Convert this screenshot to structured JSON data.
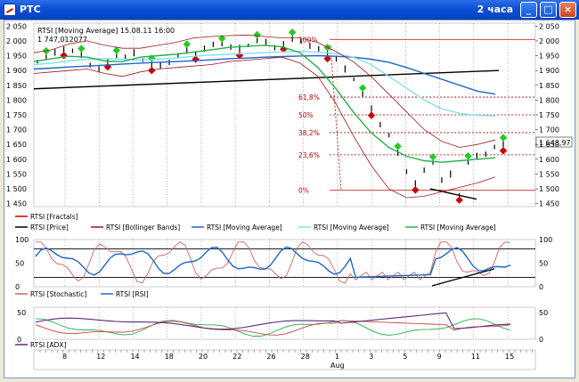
{
  "window": {
    "title": "РТС",
    "timeframe": "2 часа",
    "min_icon": "minimize-icon",
    "max_icon": "maximize-icon",
    "close_icon": "close-icon"
  },
  "info": {
    "line1": "RTSI [Moving Average] 15.08.11 16:00",
    "line2": "1 747,012077"
  },
  "last_price_label": "1 648,97",
  "price_axis": {
    "ticks": [
      "2 050",
      "2 000",
      "1 950",
      "1 900",
      "1 850",
      "1 800",
      "1 750",
      "1 700",
      "1 650",
      "1 600",
      "1 550",
      "1 500",
      "1 450"
    ]
  },
  "fib_levels": [
    {
      "label": "100%",
      "value": 2005
    },
    {
      "label": "61,8%",
      "value": 1810
    },
    {
      "label": "50%",
      "value": 1750
    },
    {
      "label": "38,2%",
      "value": 1690
    },
    {
      "label": "23,6%",
      "value": 1615
    },
    {
      "label": "0%",
      "value": 1495
    }
  ],
  "legend_main": [
    {
      "label": "RTSI [Fractals]",
      "color": "#cc0000"
    },
    {
      "label": "RTSI [Price]",
      "color": "#000000"
    },
    {
      "label": "RTSI [Bollinger Bands]",
      "color": "#a01818"
    },
    {
      "label": "RTSI [Moving Average]",
      "color": "#1f66c7"
    },
    {
      "label": "RTSI [Moving Average]",
      "color": "#7fe0ee"
    },
    {
      "label": "RTSI [Moving Average]",
      "color": "#22b24a"
    }
  ],
  "osc_axis": {
    "ticks": [
      "100",
      "50",
      "0"
    ]
  },
  "legend_osc": [
    {
      "label": "RTSI [Stochastic]",
      "color": "#cc6666"
    },
    {
      "label": "RTSI [RSI]",
      "color": "#1f66c7"
    }
  ],
  "adx_axis": {
    "ticks": [
      "50",
      "0"
    ]
  },
  "legend_adx": [
    {
      "label": "RTSI [ADX]",
      "color": "#5a2a7a"
    }
  ],
  "x_axis": {
    "days": [
      "8",
      "12",
      "14",
      "18",
      "20",
      "22",
      "26",
      "28",
      "1",
      "3",
      "5",
      "9",
      "11",
      "15"
    ],
    "month": "Aug"
  },
  "colors": {
    "title_bar": "#0a4fd6",
    "bollinger": "#a01818",
    "ma_blue": "#1f66c7",
    "ma_cyan": "#7fe0ee",
    "ma_green": "#22b24a",
    "fractal_up": "#22cc22",
    "fractal_down": "#cc0000",
    "fib": "#b00000"
  },
  "chart_data": {
    "type": "line",
    "title": "РТС",
    "x_labels": [
      "8",
      "12",
      "14",
      "18",
      "20",
      "22",
      "26",
      "28",
      "1",
      "3",
      "5",
      "9",
      "11",
      "15"
    ],
    "x_month_label": "Aug",
    "price_panel": {
      "ylim": [
        1440,
        2060
      ],
      "price_series": [
        1930,
        1945,
        1960,
        1975,
        1965,
        1950,
        1920,
        1905,
        1930,
        1950,
        1945,
        1960,
        1935,
        1920,
        1915,
        1930,
        1950,
        1965,
        1960,
        1975,
        1985,
        1990,
        1980,
        1975,
        1985,
        2000,
        1995,
        1980,
        1990,
        2005,
        2000,
        1985,
        1970,
        1960,
        1940,
        1905,
        1870,
        1820,
        1770,
        1720,
        1680,
        1620,
        1560,
        1520,
        1560,
        1590,
        1530,
        1550,
        1480,
        1590,
        1610,
        1620,
        1640,
        1649
      ],
      "series": [
        {
          "name": "RTSI [Moving Average]",
          "values": [
            1905,
            1908,
            1912,
            1915,
            1918,
            1922,
            1925,
            1928,
            1930,
            1933,
            1936,
            1940,
            1942,
            1945,
            1947,
            1949,
            1950,
            1948,
            1945,
            1938,
            1928,
            1910,
            1890,
            1870,
            1850,
            1830,
            1820
          ]
        },
        {
          "name": "RTSI [Moving Average]",
          "values": [
            1920,
            1925,
            1932,
            1938,
            1940,
            1938,
            1935,
            1938,
            1942,
            1948,
            1952,
            1955,
            1958,
            1960,
            1963,
            1965,
            1962,
            1958,
            1945,
            1920,
            1880,
            1840,
            1800,
            1770,
            1755,
            1748,
            1747
          ]
        },
        {
          "name": "RTSI [Moving Average]",
          "values": [
            1930,
            1940,
            1948,
            1945,
            1932,
            1930,
            1945,
            1950,
            1955,
            1962,
            1970,
            1978,
            1982,
            1985,
            1980,
            1960,
            1910,
            1840,
            1760,
            1690,
            1640,
            1610,
            1595,
            1590,
            1595,
            1600,
            1605
          ]
        }
      ],
      "trendline": {
        "from": [
          0,
          1838
        ],
        "to": [
          1,
          1900
        ]
      },
      "fib_levels": [
        {
          "level": "100%",
          "value": 2005
        },
        {
          "level": "61,8%",
          "value": 1810
        },
        {
          "level": "50%",
          "value": 1750
        },
        {
          "level": "38,2%",
          "value": 1690
        },
        {
          "level": "23,6%",
          "value": 1615
        },
        {
          "level": "0%",
          "value": 1495
        }
      ],
      "last_value": 1648.97
    },
    "oscillator_panel": {
      "ylim": [
        0,
        100
      ],
      "levels": [
        20,
        80
      ]
    },
    "adx_panel": {
      "ylim": [
        0,
        60
      ]
    }
  }
}
